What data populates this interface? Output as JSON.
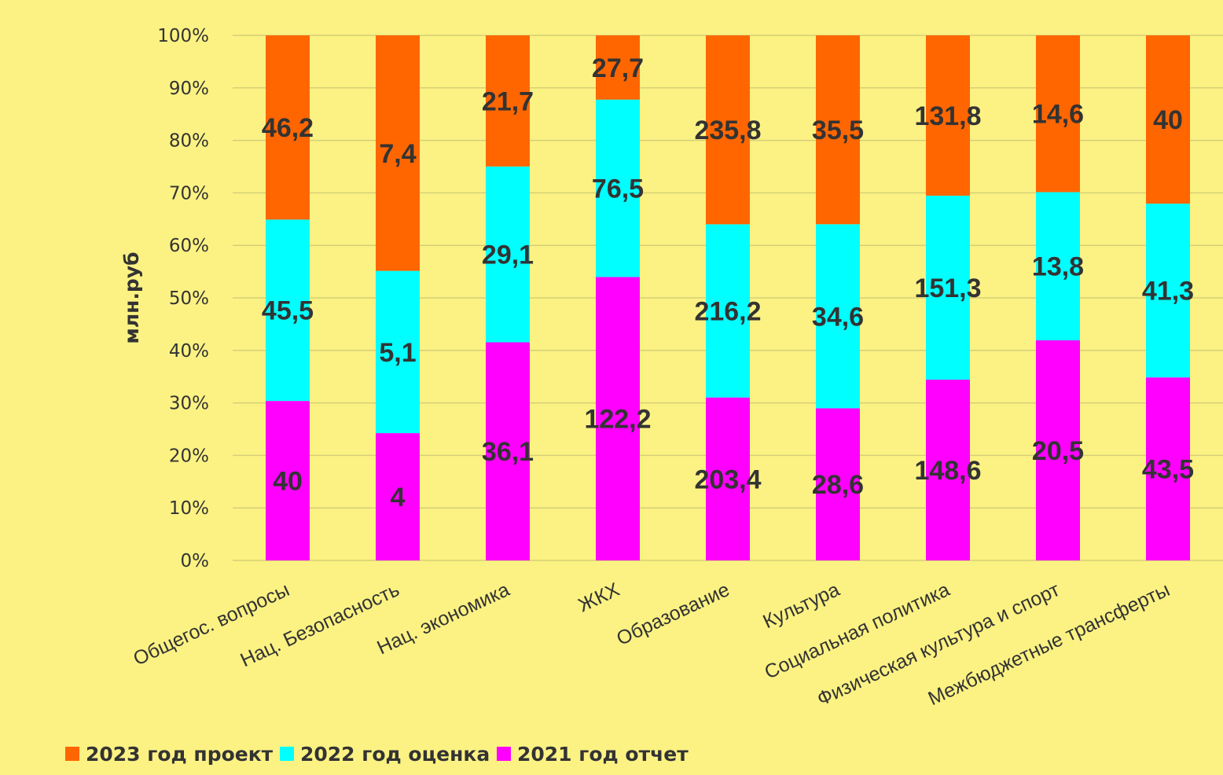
{
  "chart_data": {
    "type": "bar",
    "stacked": "percent",
    "ylabel": "млн.руб",
    "yticks": [
      "0%",
      "10%",
      "20%",
      "30%",
      "40%",
      "50%",
      "60%",
      "70%",
      "80%",
      "90%",
      "100%"
    ],
    "ylim": [
      0,
      100
    ],
    "grid": true,
    "legend_position": "bottom-left",
    "categories": [
      "Общегос. вопросы",
      "Нац. Безопасность",
      "Нац. экономика",
      "ЖКХ",
      "Образование",
      "Культура",
      "Социальная политика",
      "Физическая культура и спорт",
      "Межбюджетные трансферты"
    ],
    "series": [
      {
        "name": "2021 год отчет",
        "color": "#ff00ff",
        "values": [
          40,
          4,
          36.1,
          122.2,
          203.4,
          28.6,
          148.6,
          20.5,
          43.5
        ],
        "labels": [
          "40",
          "4",
          "36,1",
          "122,2",
          "203,4",
          "28,6",
          "148,6",
          "20,5",
          "43,5"
        ]
      },
      {
        "name": "2022 год оценка",
        "color": "#00ffff",
        "values": [
          45.5,
          5.1,
          29.1,
          76.5,
          216.2,
          34.6,
          151.3,
          13.8,
          41.3
        ],
        "labels": [
          "45,5",
          "5,1",
          "29,1",
          "76,5",
          "216,2",
          "34,6",
          "151,3",
          "13,8",
          "41,3"
        ]
      },
      {
        "name": "2023 год проект",
        "color": "#ff6600",
        "values": [
          46.2,
          7.4,
          21.7,
          27.7,
          235.8,
          35.5,
          131.8,
          14.6,
          40
        ],
        "labels": [
          "46,2",
          "7,4",
          "21,7",
          "27,7",
          "235,8",
          "35,5",
          "131,8",
          "14,6",
          "40"
        ]
      }
    ],
    "legend_order": [
      "2023 год проект",
      "2022 год оценка",
      "2021 год отчет"
    ]
  }
}
